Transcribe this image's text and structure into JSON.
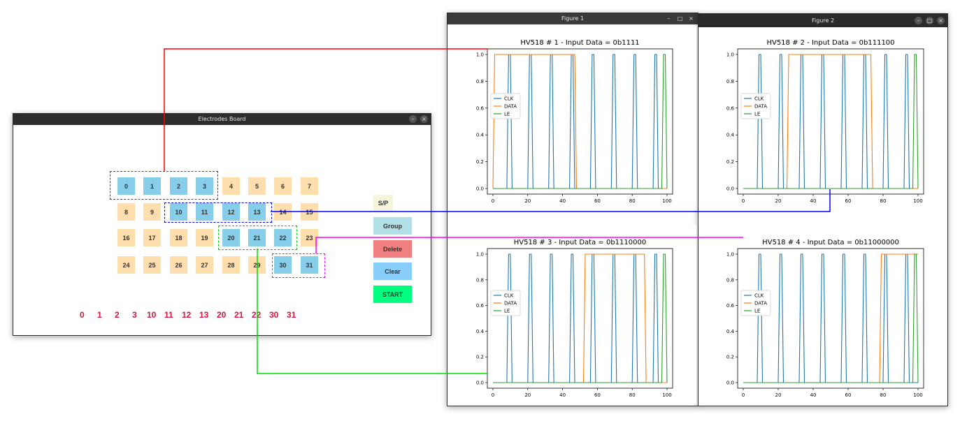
{
  "electrodes_window": {
    "title": "Electrodes Board",
    "rows": [
      [
        {
          "label": "0",
          "selected": true
        },
        {
          "label": "1",
          "selected": true
        },
        {
          "label": "2",
          "selected": true
        },
        {
          "label": "3",
          "selected": true
        },
        {
          "label": "4",
          "selected": false
        },
        {
          "label": "5",
          "selected": false
        },
        {
          "label": "6",
          "selected": false
        },
        {
          "label": "7",
          "selected": false
        }
      ],
      [
        {
          "label": "8",
          "selected": false
        },
        {
          "label": "9",
          "selected": false
        },
        {
          "label": "10",
          "selected": true
        },
        {
          "label": "11",
          "selected": true
        },
        {
          "label": "12",
          "selected": true
        },
        {
          "label": "13",
          "selected": true
        },
        {
          "label": "14",
          "selected": false
        },
        {
          "label": "15",
          "selected": false
        }
      ],
      [
        {
          "label": "16",
          "selected": false
        },
        {
          "label": "17",
          "selected": false
        },
        {
          "label": "18",
          "selected": false
        },
        {
          "label": "19",
          "selected": false
        },
        {
          "label": "20",
          "selected": true
        },
        {
          "label": "21",
          "selected": true
        },
        {
          "label": "22",
          "selected": true
        },
        {
          "label": "23",
          "selected": false
        }
      ],
      [
        {
          "label": "24",
          "selected": false
        },
        {
          "label": "25",
          "selected": false
        },
        {
          "label": "26",
          "selected": false
        },
        {
          "label": "27",
          "selected": false
        },
        {
          "label": "28",
          "selected": false
        },
        {
          "label": "29",
          "selected": false
        },
        {
          "label": "30",
          "selected": true
        },
        {
          "label": "31",
          "selected": true
        }
      ]
    ],
    "buttons": {
      "sp": {
        "label": "S/P",
        "color": "#f5f5dc"
      },
      "group": {
        "label": "Group",
        "color": "#b0e0e6"
      },
      "delete": {
        "label": "Delete",
        "color": "#f08080"
      },
      "clear": {
        "label": "Clear",
        "color": "#87cefa"
      },
      "start": {
        "label": "START",
        "color": "#00ff7f"
      }
    },
    "sequence": [
      "0",
      "1",
      "2",
      "3",
      "10",
      "11",
      "12",
      "13",
      "20",
      "21",
      "22",
      "30",
      "31"
    ],
    "colors": {
      "selected": "#87ceeb",
      "unselected": "#ffdead",
      "sequence": "#dc143c"
    }
  },
  "figure_windows": [
    {
      "title": "Figure 1"
    },
    {
      "title": "Figure 2"
    }
  ],
  "group_colors": [
    "#ff0000",
    "#0000ff",
    "#00cc00",
    "#ff00ff"
  ],
  "chart_data": [
    {
      "type": "line",
      "title": "HV518 # 1 - Input Data = 0b1111",
      "xlim": [
        0,
        100
      ],
      "ylim": [
        0,
        1
      ],
      "xticks": [
        0,
        20,
        40,
        60,
        80,
        100
      ],
      "yticks": [
        0.0,
        0.2,
        0.4,
        0.6,
        0.8,
        1.0
      ],
      "legend_position": "center-left",
      "series": [
        {
          "name": "CLK",
          "color": "#1f77b4",
          "x": [
            0,
            8,
            9,
            10,
            11,
            20,
            21,
            22,
            23,
            32,
            33,
            34,
            35,
            44,
            45,
            46,
            47,
            56,
            57,
            58,
            59,
            68,
            69,
            70,
            71,
            80,
            81,
            82,
            83,
            92,
            93,
            94,
            95,
            100
          ],
          "y": [
            0,
            0,
            1,
            1,
            0,
            0,
            1,
            1,
            0,
            0,
            1,
            1,
            0,
            0,
            1,
            1,
            0,
            0,
            1,
            1,
            0,
            0,
            1,
            1,
            0,
            0,
            1,
            1,
            0,
            0,
            1,
            1,
            0,
            0
          ]
        },
        {
          "name": "DATA",
          "color": "#ff7f0e",
          "x": [
            0,
            1,
            47,
            48,
            100
          ],
          "y": [
            0,
            1,
            1,
            0,
            0
          ]
        },
        {
          "name": "LE",
          "color": "#2ca02c",
          "x": [
            0,
            97,
            98,
            99,
            100
          ],
          "y": [
            0,
            0,
            1,
            1,
            0
          ]
        }
      ]
    },
    {
      "type": "line",
      "title": "HV518 # 2 - Input Data = 0b111100",
      "xlim": [
        0,
        100
      ],
      "ylim": [
        0,
        1
      ],
      "xticks": [
        0,
        20,
        40,
        60,
        80,
        100
      ],
      "yticks": [
        0.0,
        0.2,
        0.4,
        0.6,
        0.8,
        1.0
      ],
      "legend_position": "center-left",
      "series": [
        {
          "name": "CLK",
          "color": "#1f77b4",
          "x": [
            0,
            8,
            9,
            10,
            11,
            20,
            21,
            22,
            23,
            32,
            33,
            34,
            35,
            44,
            45,
            46,
            47,
            56,
            57,
            58,
            59,
            68,
            69,
            70,
            71,
            80,
            81,
            82,
            83,
            92,
            93,
            94,
            95,
            100
          ],
          "y": [
            0,
            0,
            1,
            1,
            0,
            0,
            1,
            1,
            0,
            0,
            1,
            1,
            0,
            0,
            1,
            1,
            0,
            0,
            1,
            1,
            0,
            0,
            1,
            1,
            0,
            0,
            1,
            1,
            0,
            0,
            1,
            1,
            0,
            0
          ]
        },
        {
          "name": "DATA",
          "color": "#ff7f0e",
          "x": [
            0,
            25,
            26,
            73,
            74,
            100
          ],
          "y": [
            0,
            0,
            1,
            1,
            0,
            0
          ]
        },
        {
          "name": "LE",
          "color": "#2ca02c",
          "x": [
            0,
            97,
            98,
            99,
            100
          ],
          "y": [
            0,
            0,
            1,
            1,
            0
          ]
        }
      ]
    },
    {
      "type": "line",
      "title": "HV518 # 3 - Input Data = 0b1110000",
      "xlim": [
        0,
        100
      ],
      "ylim": [
        0,
        1
      ],
      "xticks": [
        0,
        20,
        40,
        60,
        80,
        100
      ],
      "yticks": [
        0.0,
        0.2,
        0.4,
        0.6,
        0.8,
        1.0
      ],
      "legend_position": "center-left",
      "series": [
        {
          "name": "CLK",
          "color": "#1f77b4",
          "x": [
            0,
            8,
            9,
            10,
            11,
            20,
            21,
            22,
            23,
            32,
            33,
            34,
            35,
            44,
            45,
            46,
            47,
            56,
            57,
            58,
            59,
            68,
            69,
            70,
            71,
            80,
            81,
            82,
            83,
            92,
            93,
            94,
            95,
            100
          ],
          "y": [
            0,
            0,
            1,
            1,
            0,
            0,
            1,
            1,
            0,
            0,
            1,
            1,
            0,
            0,
            1,
            1,
            0,
            0,
            1,
            1,
            0,
            0,
            1,
            1,
            0,
            0,
            1,
            1,
            0,
            0,
            1,
            1,
            0,
            0
          ]
        },
        {
          "name": "DATA",
          "color": "#ff7f0e",
          "x": [
            0,
            52,
            53,
            87,
            88,
            100
          ],
          "y": [
            0,
            0,
            1,
            1,
            0,
            0
          ]
        },
        {
          "name": "LE",
          "color": "#2ca02c",
          "x": [
            0,
            97,
            98,
            99,
            100
          ],
          "y": [
            0,
            0,
            1,
            1,
            0
          ]
        }
      ]
    },
    {
      "type": "line",
      "title": "HV518 # 4 - Input Data = 0b11000000",
      "xlim": [
        0,
        100
      ],
      "ylim": [
        0,
        1
      ],
      "xticks": [
        0,
        20,
        40,
        60,
        80,
        100
      ],
      "yticks": [
        0.0,
        0.2,
        0.4,
        0.6,
        0.8,
        1.0
      ],
      "legend_position": "center-left",
      "series": [
        {
          "name": "CLK",
          "color": "#1f77b4",
          "x": [
            0,
            8,
            9,
            10,
            11,
            20,
            21,
            22,
            23,
            32,
            33,
            34,
            35,
            44,
            45,
            46,
            47,
            56,
            57,
            58,
            59,
            68,
            69,
            70,
            71,
            80,
            81,
            82,
            83,
            92,
            93,
            94,
            95,
            100
          ],
          "y": [
            0,
            0,
            1,
            1,
            0,
            0,
            1,
            1,
            0,
            0,
            1,
            1,
            0,
            0,
            1,
            1,
            0,
            0,
            1,
            1,
            0,
            0,
            1,
            1,
            0,
            0,
            1,
            1,
            0,
            0,
            1,
            1,
            0,
            0
          ]
        },
        {
          "name": "DATA",
          "color": "#ff7f0e",
          "x": [
            0,
            78,
            79,
            100
          ],
          "y": [
            0,
            0,
            1,
            1
          ]
        },
        {
          "name": "LE",
          "color": "#2ca02c",
          "x": [
            0,
            97,
            98,
            99,
            100
          ],
          "y": [
            0,
            0,
            1,
            1,
            0
          ]
        }
      ]
    }
  ]
}
